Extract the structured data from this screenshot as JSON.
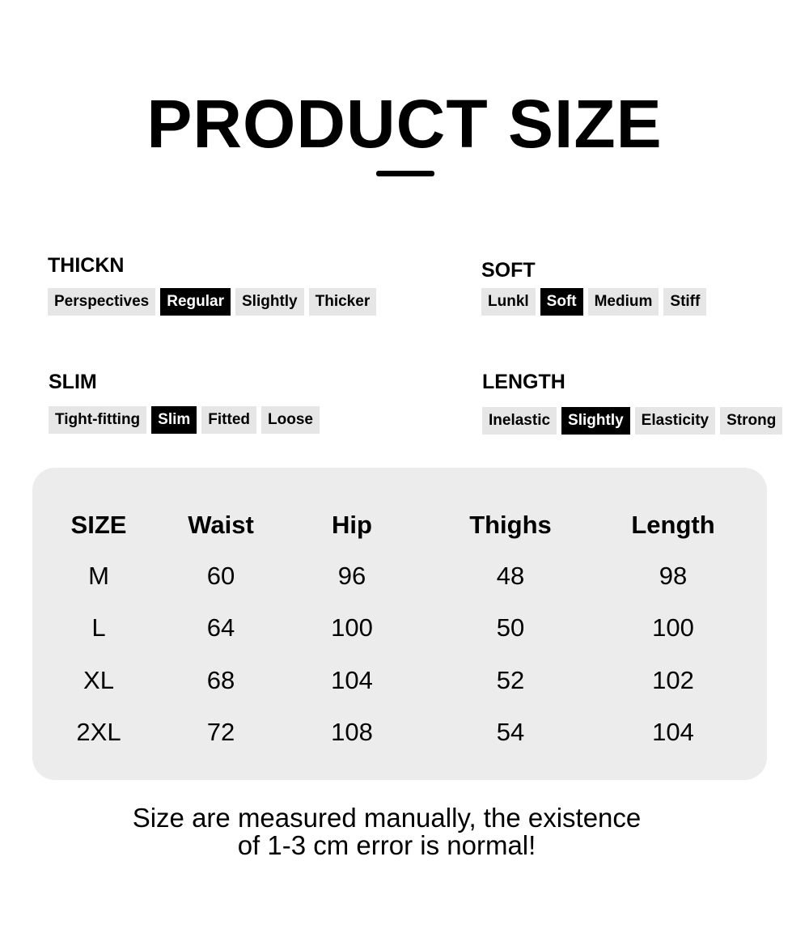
{
  "header": {
    "title": "PRODUCT SIZE"
  },
  "attributes": [
    {
      "label": "THICKN",
      "options": [
        {
          "text": "Perspectives",
          "highlighted": false
        },
        {
          "text": "Regular",
          "highlighted": true
        },
        {
          "text": "Slightly",
          "highlighted": false
        },
        {
          "text": "Thicker",
          "highlighted": false
        }
      ]
    },
    {
      "label": "SOFT",
      "options": [
        {
          "text": "Lunkl",
          "highlighted": false
        },
        {
          "text": "Soft",
          "highlighted": true
        },
        {
          "text": "Medium",
          "highlighted": false
        },
        {
          "text": "Stiff",
          "highlighted": false
        }
      ]
    },
    {
      "label": "SLIM",
      "options": [
        {
          "text": "Tight-fitting",
          "highlighted": false
        },
        {
          "text": "Slim",
          "highlighted": true
        },
        {
          "text": "Fitted",
          "highlighted": false
        },
        {
          "text": "Loose",
          "highlighted": false
        }
      ]
    },
    {
      "label": "LENGTH",
      "options": [
        {
          "text": "Inelastic",
          "highlighted": false
        },
        {
          "text": "Slightly",
          "highlighted": true
        },
        {
          "text": "Elasticity",
          "highlighted": false
        },
        {
          "text": "Strong",
          "highlighted": false
        }
      ]
    }
  ],
  "table": {
    "header": [
      "SIZE",
      "Waist",
      "Hip",
      "Thighs",
      "Length"
    ],
    "rows": [
      [
        "M",
        "60",
        "96",
        "48",
        "98"
      ],
      [
        "L",
        "64",
        "100",
        "50",
        "100"
      ],
      [
        "XL",
        "68",
        "104",
        "52",
        "102"
      ],
      [
        "2XL",
        "72",
        "108",
        "54",
        "104"
      ]
    ]
  },
  "note": [
    "Size are measured manually, the existence",
    "of 1-3 cm error is normal!"
  ]
}
